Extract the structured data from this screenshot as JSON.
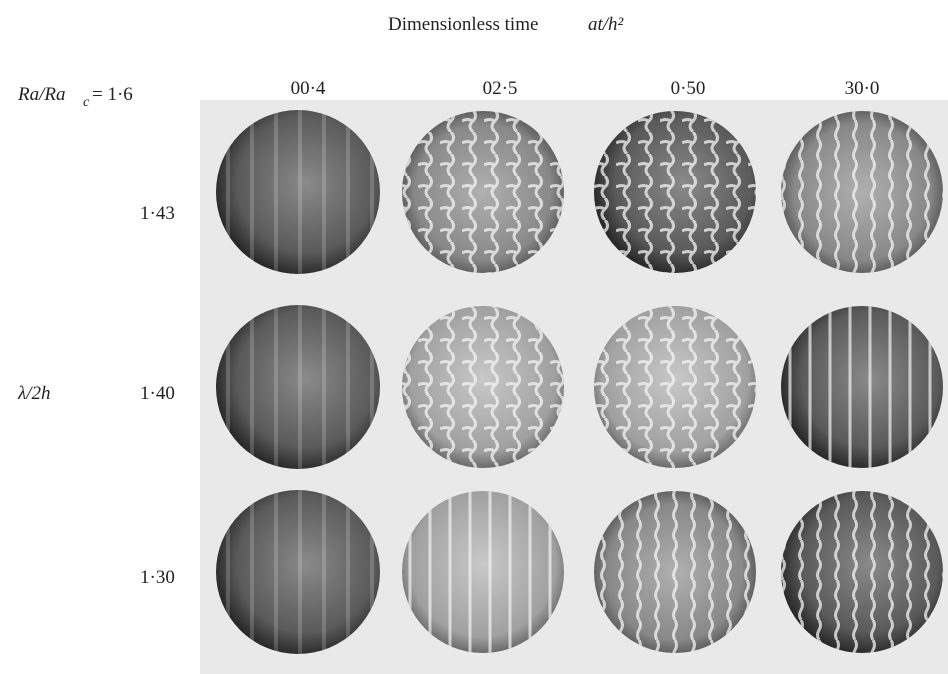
{
  "header": {
    "title": "Dimensionless time",
    "title_symbol": "at/h²"
  },
  "parameter": {
    "symbol": "Ra/Ra",
    "subscript": "c",
    "value": "= 1·6"
  },
  "columns": [
    "00·4",
    "02·5",
    "0·50",
    "30·0"
  ],
  "row_axis_label": "λ/2h",
  "rows": [
    "1·43",
    "1·40",
    "1·30"
  ]
}
